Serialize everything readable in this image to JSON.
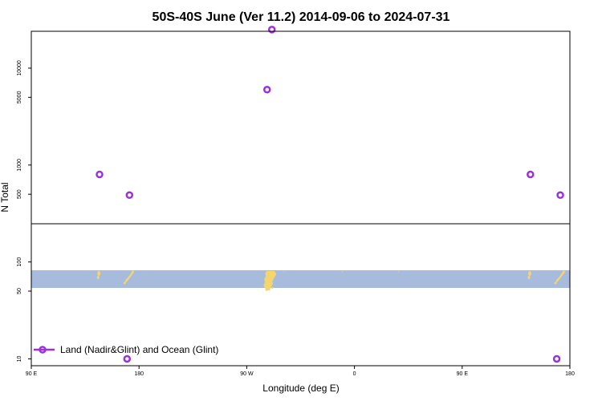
{
  "chart_data": {
    "type": "scatter",
    "title": "50S-40S June (Ver 11.2)   2014-09-06 to 2024-07-31",
    "xlabel": "Longitude (deg E)",
    "ylabel": "N Total",
    "x_ticks": [
      {
        "value": 90,
        "label": "90 E"
      },
      {
        "value": 180,
        "label": "180"
      },
      {
        "value": 270,
        "label": "90 W"
      },
      {
        "value": 360,
        "label": "0"
      },
      {
        "value": 450,
        "label": "90 E"
      },
      {
        "value": 540,
        "label": "180"
      }
    ],
    "xlim": [
      90,
      540
    ],
    "y_scale": "log",
    "y_ticks": [
      10,
      50,
      100,
      500,
      1000,
      5000,
      10000
    ],
    "ylim": [
      8.5,
      24000
    ],
    "series": [
      {
        "name": "Land (Nadir&Glint) and Ocean (Glint)",
        "color": "#9b30e0",
        "points": [
          {
            "x": 147,
            "y": 800
          },
          {
            "x": 172,
            "y": 490
          },
          {
            "x": 170,
            "y": 10
          },
          {
            "x": 287,
            "y": 6000
          },
          {
            "x": 291,
            "y": 25000
          },
          {
            "x": 507,
            "y": 800
          },
          {
            "x": 532,
            "y": 490
          },
          {
            "x": 529,
            "y": 10
          }
        ]
      }
    ],
    "inset_map": {
      "ocean_color": "#a7bcdc",
      "land_color": "#f5d56e",
      "lat_band": [
        -50,
        -40
      ]
    },
    "legend_position": "bottom-left"
  }
}
